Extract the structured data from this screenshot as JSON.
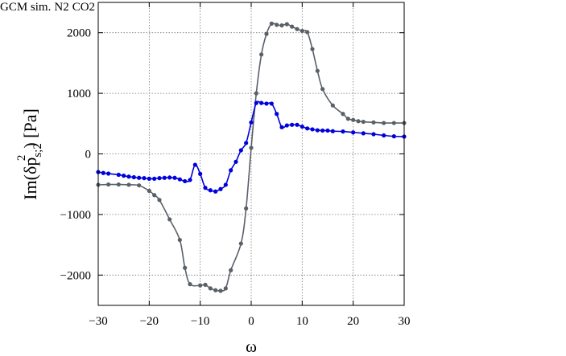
{
  "chart_data": {
    "type": "line",
    "xlabel": "ω",
    "ylabel": {
      "base": "Im(δp",
      "sub": "s;2",
      "sup": "2",
      "tail": ") [Pa]"
    },
    "xlim": [
      -30,
      30
    ],
    "ylim": [
      -2500,
      2500
    ],
    "xticks": [
      -30,
      -20,
      -10,
      0,
      10,
      20,
      30
    ],
    "yticks": [
      -2000,
      -1000,
      0,
      1000,
      2000
    ],
    "xtick_labels": [
      "−30",
      "−20",
      "−10",
      "0",
      "10",
      "20",
      "30"
    ],
    "ytick_labels": [
      "−2000",
      "−1000",
      "0",
      "1000",
      "2000"
    ],
    "grid": true,
    "legend_position": "top-right, outside plot",
    "legend": [
      {
        "label": "GCM sim.",
        "style": "points",
        "color": "#5a6068"
      },
      {
        "label": "N",
        "sub": "2",
        "style": "line",
        "color": "#5a6068"
      },
      {
        "label": "CO",
        "sub": "2",
        "style": "line",
        "color": "#0000dd"
      }
    ],
    "series": [
      {
        "key": "N2",
        "color": "#5a6068",
        "x": [
          -30,
          -28,
          -26,
          -24,
          -22,
          -20,
          -19,
          -18,
          -16,
          -14,
          -13,
          -12,
          -10,
          -9,
          -8,
          -7,
          -6,
          -5,
          -4,
          -2,
          -1,
          0,
          1,
          2,
          3,
          4,
          5,
          6,
          7,
          8,
          9,
          10,
          11,
          12,
          13,
          14,
          16,
          18,
          19,
          20,
          21,
          22,
          24,
          26,
          28,
          30
        ],
        "y": [
          -510,
          -505,
          -505,
          -510,
          -520,
          -610,
          -680,
          -760,
          -1080,
          -1420,
          -1880,
          -2150,
          -2170,
          -2160,
          -2220,
          -2250,
          -2260,
          -2220,
          -1920,
          -1480,
          -900,
          100,
          1000,
          1640,
          1980,
          2150,
          2130,
          2120,
          2140,
          2100,
          2060,
          2030,
          2010,
          1730,
          1370,
          1070,
          800,
          660,
          580,
          560,
          540,
          530,
          520,
          510,
          510,
          510
        ]
      },
      {
        "key": "CO2",
        "color": "#0000dd",
        "x": [
          -30,
          -29,
          -28,
          -26,
          -25,
          -24,
          -23,
          -22,
          -21,
          -20,
          -19,
          -18,
          -17,
          -16,
          -15,
          -14,
          -13,
          -12,
          -11,
          -10,
          -9,
          -8,
          -7,
          -6,
          -5,
          -4,
          -3,
          -2,
          -1,
          0,
          1,
          2,
          3,
          4,
          5,
          6,
          7,
          8,
          9,
          10,
          11,
          12,
          13,
          14,
          15,
          16,
          18,
          20,
          22,
          24,
          26,
          28,
          30
        ],
        "y": [
          -300,
          -315,
          -325,
          -345,
          -360,
          -375,
          -385,
          -395,
          -400,
          -410,
          -410,
          -400,
          -395,
          -390,
          -395,
          -420,
          -450,
          -430,
          -180,
          -330,
          -560,
          -600,
          -620,
          -580,
          -510,
          -270,
          -130,
          60,
          180,
          520,
          840,
          840,
          830,
          830,
          660,
          440,
          470,
          480,
          480,
          450,
          420,
          405,
          390,
          385,
          385,
          375,
          370,
          355,
          340,
          325,
          305,
          290,
          285
        ]
      }
    ]
  }
}
